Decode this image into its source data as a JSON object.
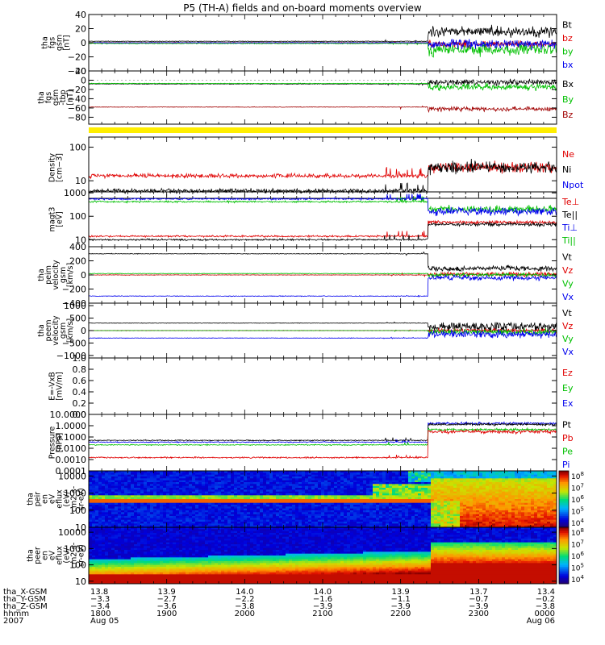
{
  "title": "P5 (TH-A) fields and on-board moments overview",
  "chart_data": [
    {
      "id": "fgs_gse",
      "type": "line",
      "ylabel": [
        "tha",
        "fgs",
        "gsm",
        "[nT]"
      ],
      "ylim": [
        -40,
        40
      ],
      "yticks": [
        "40",
        "20",
        "0",
        "−20",
        "−40"
      ],
      "ytick_values": [
        40,
        20,
        0,
        -20,
        -40
      ],
      "legend": [
        {
          "label": "Bt",
          "color": "#000000"
        },
        {
          "label": "bz",
          "color": "#e00000"
        },
        {
          "label": "by",
          "color": "#00c000"
        },
        {
          "label": "bx",
          "color": "#0000ee"
        }
      ],
      "series": [
        {
          "name": "Bt",
          "color": "#000000",
          "before": 2,
          "after": 16,
          "noise_before": 0.4,
          "noise_after": 6
        },
        {
          "name": "bz",
          "color": "#e00000",
          "before": 0,
          "after": -2,
          "noise_before": 0.4,
          "noise_after": 4
        },
        {
          "name": "by",
          "color": "#00c000",
          "before": -1,
          "after": -10,
          "noise_before": 0.5,
          "noise_after": 7
        },
        {
          "name": "bx",
          "color": "#0000ee",
          "before": 0,
          "after": -2,
          "noise_before": 0.4,
          "noise_after": 5
        }
      ]
    },
    {
      "id": "fgs_tbp",
      "type": "line",
      "ylabel": [
        "tha",
        "fgs",
        "gsm",
        "-tbp",
        "[nT]"
      ],
      "ylim": [
        -95,
        20
      ],
      "yticks": [
        "20",
        "0",
        "−20",
        "−40",
        "−60",
        "−80"
      ],
      "ytick_values": [
        20,
        0,
        -20,
        -40,
        -60,
        -80
      ],
      "legend": [
        {
          "label": "Bx",
          "color": "#000000"
        },
        {
          "label": "By",
          "color": "#00c000"
        },
        {
          "label": "Bz",
          "color": "#a00000"
        }
      ],
      "series": [
        {
          "name": "Bx",
          "color": "#000000",
          "before": -8,
          "after": -5,
          "noise_before": 0.5,
          "noise_after": 5
        },
        {
          "name": "By",
          "color": "#00c000",
          "before": -7,
          "after": -15,
          "noise_before": 0.5,
          "noise_after": 6
        },
        {
          "name": "Bz",
          "color": "#a00000",
          "before": -58,
          "after": -62,
          "noise_before": 0.5,
          "noise_after": 4
        }
      ]
    },
    {
      "id": "density",
      "type": "line",
      "yscale": "log",
      "ylabel": [
        "Density",
        "[cm−3]"
      ],
      "ylim": [
        3,
        200
      ],
      "yticks": [
        "100",
        "10"
      ],
      "ytick_values": [
        100,
        10
      ],
      "legend": [
        {
          "label": "Ne",
          "color": "#e00000"
        },
        {
          "label": "Ni",
          "color": "#000000"
        },
        {
          "label": "Npot",
          "color": "#0000ee"
        }
      ],
      "series": [
        {
          "name": "Ne",
          "color": "#e00000",
          "before": 14,
          "after": 25,
          "noise_before": 0.05,
          "noise_after": 0.12
        },
        {
          "name": "Ni",
          "color": "#000000",
          "before": 5,
          "after": 25,
          "noise_before": 0.05,
          "noise_after": 0.15
        }
      ]
    },
    {
      "id": "temperature",
      "type": "line",
      "yscale": "log",
      "ylabel": [
        "magt3",
        "[eV]"
      ],
      "ylim": [
        5,
        1100
      ],
      "yticks": [
        "1000",
        "100",
        "10"
      ],
      "ytick_values": [
        1000,
        100,
        10
      ],
      "legend": [
        {
          "label": "Te⊥",
          "color": "#e00000"
        },
        {
          "label": "Te||",
          "color": "#000000"
        },
        {
          "label": "Ti⊥",
          "color": "#0000ee"
        },
        {
          "label": "Ti||",
          "color": "#00c000"
        }
      ],
      "series": [
        {
          "name": "Ti||",
          "color": "#00c000",
          "before": 420,
          "after": 200,
          "noise_before": 0.03,
          "noise_after": 0.12
        },
        {
          "name": "Ti⊥",
          "color": "#0000ee",
          "before": 550,
          "after": 160,
          "noise_before": 0.03,
          "noise_after": 0.15
        },
        {
          "name": "Te⊥",
          "color": "#e00000",
          "before": 14,
          "after": 55,
          "noise_before": 0.03,
          "noise_after": 0.06
        },
        {
          "name": "Te||",
          "color": "#000000",
          "before": 10,
          "after": 45,
          "noise_before": 0.03,
          "noise_after": 0.06
        }
      ]
    },
    {
      "id": "peim_velocity",
      "type": "line",
      "ylabel": [
        "tha",
        "peim",
        "velocity",
        "gsm",
        "[km/s]"
      ],
      "ylim": [
        -400,
        400
      ],
      "yticks": [
        "400",
        "200",
        "0",
        "−200",
        "−400"
      ],
      "ytick_values": [
        400,
        200,
        0,
        -200,
        -400
      ],
      "legend": [
        {
          "label": "Vt",
          "color": "#000000"
        },
        {
          "label": "Vz",
          "color": "#e00000"
        },
        {
          "label": "Vy",
          "color": "#00c000"
        },
        {
          "label": "Vx",
          "color": "#0000ee"
        }
      ],
      "series": [
        {
          "name": "Vt",
          "color": "#000000",
          "before": 300,
          "after": 90,
          "noise_before": 4,
          "noise_after": 30
        },
        {
          "name": "Vz",
          "color": "#e00000",
          "before": 0,
          "after": 10,
          "noise_before": 3,
          "noise_after": 25
        },
        {
          "name": "Vy",
          "color": "#00c000",
          "before": 20,
          "after": 0,
          "noise_before": 3,
          "noise_after": 20
        },
        {
          "name": "Vx",
          "color": "#0000ee",
          "before": -300,
          "after": -40,
          "noise_before": 4,
          "noise_after": 30
        }
      ]
    },
    {
      "id": "peem_velocity",
      "type": "line",
      "ylabel": [
        "tha",
        "peem",
        "velocity",
        "gsm",
        "[km/s]"
      ],
      "ylim": [
        -1100,
        1100
      ],
      "yticks": [
        "1000",
        "500",
        "0",
        "−500",
        "−1000"
      ],
      "ytick_values": [
        1000,
        500,
        0,
        -500,
        -1000
      ],
      "legend": [
        {
          "label": "Vt",
          "color": "#000000"
        },
        {
          "label": "Vz",
          "color": "#e00000"
        },
        {
          "label": "Vy",
          "color": "#00c000"
        },
        {
          "label": "Vx",
          "color": "#0000ee"
        }
      ],
      "series": [
        {
          "name": "Vt",
          "color": "#000000",
          "before": 300,
          "after": 150,
          "noise_before": 8,
          "noise_after": 140
        },
        {
          "name": "Vz",
          "color": "#e00000",
          "before": 0,
          "after": 0,
          "noise_before": 6,
          "noise_after": 60
        },
        {
          "name": "Vy",
          "color": "#00c000",
          "before": 0,
          "after": -50,
          "noise_before": 6,
          "noise_after": 100
        },
        {
          "name": "Vx",
          "color": "#0000ee",
          "before": -300,
          "after": -150,
          "noise_before": 8,
          "noise_after": 120
        }
      ]
    },
    {
      "id": "efield",
      "type": "line",
      "ylabel": [
        "E=-VxB",
        "[mV/m]"
      ],
      "ylim": [
        0,
        1
      ],
      "yticks": [
        "1.0",
        "0.8",
        "0.6",
        "0.4",
        "0.2",
        "0.0"
      ],
      "ytick_values": [
        1.0,
        0.8,
        0.6,
        0.4,
        0.2,
        0.0
      ],
      "legend": [
        {
          "label": "Ez",
          "color": "#e00000"
        },
        {
          "label": "Ey",
          "color": "#00c000"
        },
        {
          "label": "Ex",
          "color": "#0000ee"
        }
      ],
      "series": []
    },
    {
      "id": "pressure",
      "type": "line",
      "yscale": "log",
      "ylabel": [
        "Pressure",
        "[nPa]"
      ],
      "ylim": [
        0.0001,
        10
      ],
      "yticks": [
        "10.0000",
        "1.0000",
        "0.1000",
        "0.0100",
        "0.0010",
        "0.0001"
      ],
      "ytick_values": [
        10,
        1,
        0.1,
        0.01,
        0.001,
        0.0001
      ],
      "legend": [
        {
          "label": "Pt",
          "color": "#000000"
        },
        {
          "label": "Pb",
          "color": "#e00000"
        },
        {
          "label": "Pe",
          "color": "#00c000"
        },
        {
          "label": "Pi",
          "color": "#0000ee"
        }
      ],
      "series": [
        {
          "name": "Pi",
          "color": "#0000ee",
          "before": 0.035,
          "after": 1.6,
          "noise_before": 0.04,
          "noise_after": 0.08
        },
        {
          "name": "Pt",
          "color": "#000000",
          "before": 0.05,
          "after": 1.3,
          "noise_before": 0.04,
          "noise_after": 0.08
        },
        {
          "name": "Pe",
          "color": "#00c000",
          "before": 0.02,
          "after": 0.45,
          "noise_before": 0.04,
          "noise_after": 0.08
        },
        {
          "name": "Pb",
          "color": "#e00000",
          "before": 0.0015,
          "after": 0.3,
          "noise_before": 0.05,
          "noise_after": 0.12
        }
      ]
    },
    {
      "id": "peir_spectrogram",
      "type": "heatmap",
      "ylabel": [
        "tha",
        "peir",
        "en",
        "eV",
        "eflux",
        "(eV/",
        "cm2-s-",
        "sr-eV)"
      ],
      "yscale": "log",
      "ylim": [
        10,
        20000
      ],
      "yticks": [
        "10000",
        "1000",
        "100",
        "10"
      ],
      "ytick_values": [
        10000,
        1000,
        100,
        10
      ],
      "colorbar_ticks": [
        "10^8",
        "10^7",
        "10^6",
        "10^5",
        "10^4"
      ]
    },
    {
      "id": "peer_spectrogram",
      "type": "heatmap",
      "ylabel": [
        "tha",
        "peer",
        "en",
        "eV",
        "eflux",
        "(eV/",
        "cm2-s-",
        "sr-eV)"
      ],
      "yscale": "log",
      "ylim": [
        7,
        20000
      ],
      "yticks": [
        "10000",
        "1000",
        "100",
        "10"
      ],
      "ytick_values": [
        10000,
        1000,
        100,
        10
      ],
      "colorbar_ticks": [
        "10^8",
        "10^7",
        "10^6",
        "10^5",
        "10^4"
      ]
    }
  ],
  "colorbar": {
    "ticks": [
      {
        "base": "10",
        "exp": "8"
      },
      {
        "base": "10",
        "exp": "7"
      },
      {
        "base": "10",
        "exp": "6"
      },
      {
        "base": "10",
        "exp": "5"
      },
      {
        "base": "10",
        "exp": "4"
      }
    ]
  },
  "xaxis": {
    "row_labels": [
      "tha_X-GSM",
      "tha_Y-GSM",
      "tha_Z-GSM",
      "hhmm",
      "2007"
    ],
    "columns": [
      {
        "x": "13.8",
        "y": "−3.3",
        "z": "−3.4",
        "time": "1800",
        "date": "Aug 05"
      },
      {
        "x": "13.9",
        "y": "−2.7",
        "z": "−3.6",
        "time": "1900",
        "date": ""
      },
      {
        "x": "14.0",
        "y": "−2.2",
        "z": "−3.8",
        "time": "2000",
        "date": ""
      },
      {
        "x": "14.0",
        "y": "−1.6",
        "z": "−3.9",
        "time": "2100",
        "date": ""
      },
      {
        "x": "13.9",
        "y": "−1.1",
        "z": "−3.9",
        "time": "2200",
        "date": ""
      },
      {
        "x": "13.7",
        "y": "−0.7",
        "z": "−3.9",
        "time": "2300",
        "date": ""
      },
      {
        "x": "13.4",
        "y": "−0.2",
        "z": "−3.8",
        "time": "0000",
        "date": "Aug 06"
      }
    ],
    "shock_time_fraction": 0.725
  }
}
